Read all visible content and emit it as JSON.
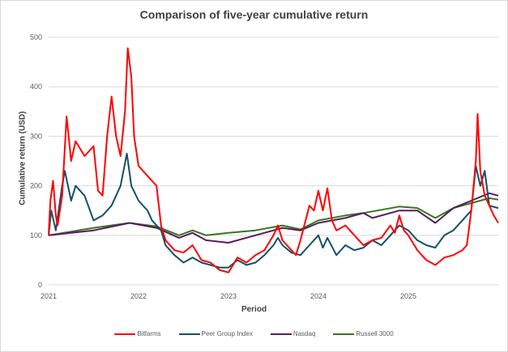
{
  "chart_data": {
    "type": "line",
    "title": "Comparison of five-year cumulative return",
    "xlabel": "Period",
    "ylabel": "Cumulative return (USD)",
    "xlim": [
      2021,
      2026
    ],
    "ylim": [
      0,
      500
    ],
    "yticks": [
      0,
      100,
      200,
      300,
      400,
      500
    ],
    "xticks": [
      2021,
      2022,
      2023,
      2024,
      2025
    ],
    "grid": true,
    "legend": "bottom",
    "series": [
      {
        "name": "Bitfarms",
        "color": "#ff0000",
        "x": [
          2021.0,
          2021.02,
          2021.05,
          2021.08,
          2021.1,
          2021.15,
          2021.2,
          2021.25,
          2021.3,
          2021.4,
          2021.5,
          2021.55,
          2021.6,
          2021.65,
          2021.7,
          2021.75,
          2021.8,
          2021.85,
          2021.88,
          2021.92,
          2021.95,
          2022.0,
          2022.1,
          2022.2,
          2022.25,
          2022.3,
          2022.4,
          2022.5,
          2022.6,
          2022.7,
          2022.8,
          2022.9,
          2023.0,
          2023.1,
          2023.2,
          2023.3,
          2023.4,
          2023.5,
          2023.55,
          2023.6,
          2023.7,
          2023.75,
          2023.8,
          2023.9,
          2023.95,
          2024.0,
          2024.05,
          2024.1,
          2024.15,
          2024.2,
          2024.3,
          2024.4,
          2024.5,
          2024.6,
          2024.7,
          2024.8,
          2024.85,
          2024.9,
          2024.95,
          2025.0,
          2025.1,
          2025.2,
          2025.3,
          2025.4,
          2025.5,
          2025.6,
          2025.65,
          2025.7,
          2025.75,
          2025.77,
          2025.8,
          2025.85,
          2025.9,
          2025.95,
          2026.0
        ],
        "y": [
          100,
          170,
          210,
          140,
          120,
          180,
          340,
          250,
          290,
          260,
          280,
          190,
          180,
          300,
          380,
          300,
          260,
          350,
          478,
          420,
          300,
          240,
          220,
          200,
          120,
          90,
          70,
          65,
          80,
          50,
          45,
          30,
          25,
          55,
          45,
          60,
          70,
          100,
          120,
          90,
          70,
          60,
          90,
          160,
          150,
          190,
          150,
          195,
          130,
          110,
          120,
          100,
          80,
          90,
          95,
          120,
          105,
          140,
          110,
          100,
          70,
          50,
          40,
          55,
          60,
          70,
          80,
          150,
          250,
          345,
          230,
          180,
          160,
          140,
          125
        ]
      },
      {
        "name": "Peer Group Index",
        "color": "#12506b",
        "x": [
          2021.0,
          2021.03,
          2021.08,
          2021.15,
          2021.18,
          2021.25,
          2021.3,
          2021.4,
          2021.5,
          2021.6,
          2021.7,
          2021.8,
          2021.87,
          2021.92,
          2022.0,
          2022.1,
          2022.15,
          2022.25,
          2022.3,
          2022.4,
          2022.5,
          2022.6,
          2022.7,
          2022.8,
          2022.9,
          2023.0,
          2023.1,
          2023.2,
          2023.3,
          2023.4,
          2023.5,
          2023.55,
          2023.6,
          2023.7,
          2023.8,
          2023.9,
          2024.0,
          2024.05,
          2024.1,
          2024.2,
          2024.3,
          2024.4,
          2024.5,
          2024.6,
          2024.7,
          2024.8,
          2024.9,
          2025.0,
          2025.1,
          2025.2,
          2025.3,
          2025.4,
          2025.5,
          2025.6,
          2025.7,
          2025.75,
          2025.8,
          2025.85,
          2025.9,
          2026.0
        ],
        "y": [
          100,
          150,
          110,
          200,
          230,
          170,
          200,
          180,
          130,
          140,
          160,
          200,
          265,
          200,
          170,
          150,
          130,
          110,
          80,
          60,
          45,
          55,
          45,
          40,
          35,
          35,
          50,
          40,
          45,
          60,
          80,
          95,
          80,
          65,
          60,
          80,
          100,
          75,
          95,
          60,
          80,
          70,
          75,
          90,
          80,
          100,
          120,
          110,
          90,
          80,
          75,
          100,
          110,
          130,
          150,
          240,
          200,
          230,
          160,
          155
        ]
      },
      {
        "name": "Nasdaq",
        "color": "#5b1a5e",
        "x": [
          2021.0,
          2021.5,
          2021.9,
          2022.2,
          2022.45,
          2022.6,
          2022.75,
          2023.0,
          2023.3,
          2023.6,
          2023.8,
          2024.0,
          2024.3,
          2024.5,
          2024.6,
          2024.9,
          2025.1,
          2025.3,
          2025.5,
          2025.7,
          2025.9,
          2026.0
        ],
        "y": [
          100,
          110,
          125,
          115,
          95,
          105,
          90,
          85,
          100,
          115,
          110,
          125,
          135,
          145,
          135,
          150,
          150,
          125,
          155,
          170,
          185,
          180
        ]
      },
      {
        "name": "Russell 3000",
        "color": "#38761d",
        "x": [
          2021.0,
          2021.5,
          2021.9,
          2022.2,
          2022.45,
          2022.6,
          2022.75,
          2023.0,
          2023.3,
          2023.6,
          2023.8,
          2024.0,
          2024.3,
          2024.5,
          2024.9,
          2025.1,
          2025.3,
          2025.5,
          2025.7,
          2025.9,
          2026.0
        ],
        "y": [
          100,
          115,
          125,
          118,
          100,
          110,
          100,
          105,
          110,
          120,
          112,
          130,
          140,
          145,
          158,
          155,
          135,
          155,
          165,
          175,
          172
        ]
      }
    ]
  }
}
